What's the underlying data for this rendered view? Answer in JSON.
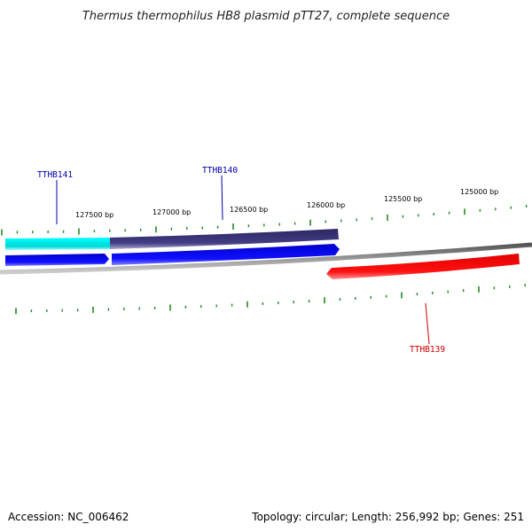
{
  "title": "Thermus thermophilus HB8 plasmid pTT27, complete sequence",
  "scale": {
    "labels": [
      "127500 bp",
      "127000 bp",
      "126500 bp",
      "126000 bp",
      "125500 bp",
      "125000 bp"
    ]
  },
  "genes": [
    {
      "name": "TTHB141",
      "color": "#0000aa"
    },
    {
      "name": "TTHB140",
      "color": "#0000aa"
    },
    {
      "name": "TTHB139",
      "color": "#cc0000"
    }
  ],
  "footer": {
    "accession": "Accession: NC_006462",
    "summary": "Topology: circular; Length: 256,992 bp; Genes: 251"
  },
  "colors": {
    "tick": "#228B22",
    "backbone": "#808080",
    "cyan_feature": "#00e5e5",
    "navy_feature": "#3b3577",
    "blue_feature": "#0000ee",
    "red_feature": "#ff0000"
  }
}
